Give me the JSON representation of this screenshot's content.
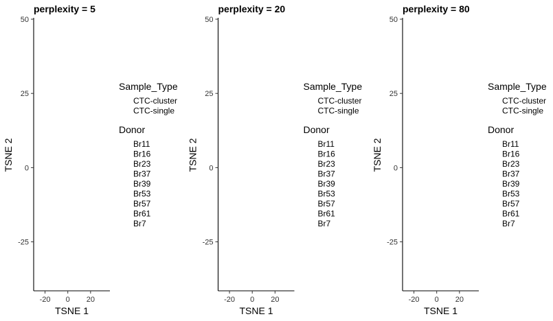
{
  "chart_data": [
    {
      "type": "scatter",
      "title": "perplexity = 5",
      "xlabel": "TSNE 1",
      "ylabel": "TSNE 2",
      "xlim": [
        -30,
        37
      ],
      "ylim": [
        -41.5,
        50
      ],
      "xticks": [
        -20,
        0,
        20
      ],
      "yticks": [
        50,
        25,
        0,
        -25
      ],
      "grid": false,
      "series": [],
      "legend": [
        {
          "title": "Sample_Type",
          "labels": [
            "CTC-cluster",
            "CTC-single"
          ]
        },
        {
          "title": "Donor",
          "labels": [
            "Br11",
            "Br16",
            "Br23",
            "Br37",
            "Br39",
            "Br53",
            "Br57",
            "Br61",
            "Br7"
          ]
        }
      ]
    },
    {
      "type": "scatter",
      "title": "perplexity = 20",
      "xlabel": "TSNE 1",
      "ylabel": "TSNE 2",
      "xlim": [
        -30,
        37
      ],
      "ylim": [
        -41.5,
        50
      ],
      "xticks": [
        -20,
        0,
        20
      ],
      "yticks": [
        50,
        25,
        0,
        -25
      ],
      "grid": false,
      "series": [],
      "legend": [
        {
          "title": "Sample_Type",
          "labels": [
            "CTC-cluster",
            "CTC-single"
          ]
        },
        {
          "title": "Donor",
          "labels": [
            "Br11",
            "Br16",
            "Br23",
            "Br37",
            "Br39",
            "Br53",
            "Br57",
            "Br61",
            "Br7"
          ]
        }
      ]
    },
    {
      "type": "scatter",
      "title": "perplexity = 80",
      "xlabel": "TSNE 1",
      "ylabel": "TSNE 2",
      "xlim": [
        -30,
        37
      ],
      "ylim": [
        -41.5,
        50
      ],
      "xticks": [
        -20,
        0,
        20
      ],
      "yticks": [
        50,
        25,
        0,
        -25
      ],
      "grid": false,
      "series": [],
      "legend": [
        {
          "title": "Sample_Type",
          "labels": [
            "CTC-cluster",
            "CTC-single"
          ]
        },
        {
          "title": "Donor",
          "labels": [
            "Br11",
            "Br16",
            "Br23",
            "Br37",
            "Br39",
            "Br53",
            "Br57",
            "Br61",
            "Br7"
          ]
        }
      ]
    }
  ]
}
